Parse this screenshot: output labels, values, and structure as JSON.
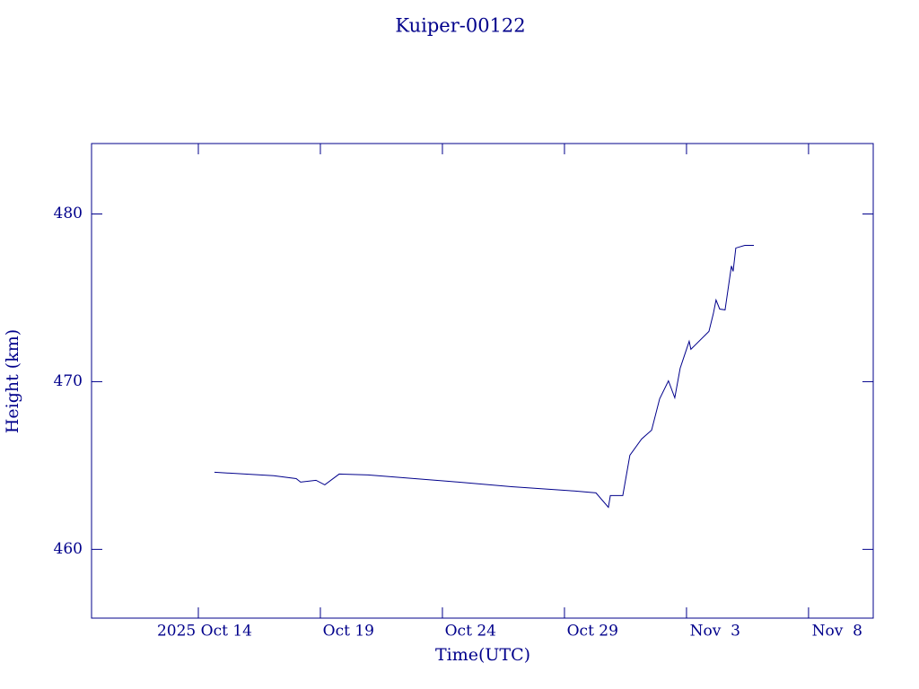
{
  "chart_data": {
    "type": "line",
    "title": "Kuiper-00122",
    "x_label": "Time(UTC)",
    "y_label": "Height (km)",
    "x": [
      287.66,
      290.09,
      291.01,
      291.19,
      291.82,
      292.18,
      292.77,
      293.95,
      297.26,
      299.83,
      302.4,
      303.29,
      303.8,
      303.88,
      304.39,
      304.68,
      305.16,
      305.57,
      305.9,
      306.26,
      306.52,
      306.74,
      307.11,
      307.18,
      307.92,
      308.1,
      308.21,
      308.36,
      308.58,
      308.84,
      308.91,
      309.02,
      309.39,
      309.76
    ],
    "series": [
      {
        "color": "#00008b",
        "values": [
          464.6,
          464.39,
          464.22,
          464.01,
          464.12,
          463.85,
          464.49,
          464.44,
          464.06,
          463.74,
          463.48,
          463.37,
          462.51,
          463.21,
          463.21,
          465.61,
          466.58,
          467.11,
          468.98,
          470.05,
          469.04,
          470.8,
          472.41,
          471.93,
          473.0,
          474.06,
          474.87,
          474.33,
          474.28,
          476.9,
          476.58,
          477.97,
          478.13,
          478.13
        ]
      }
    ],
    "xlim": [
      282.625,
      314.65
    ],
    "ylim": [
      455.9,
      484.2
    ],
    "xticks": [
      {
        "value": 287,
        "label": "2025 Oct 14"
      },
      {
        "value": 292,
        "label": "Oct 19"
      },
      {
        "value": 297,
        "label": "Oct 24"
      },
      {
        "value": 302,
        "label": "Oct 29"
      },
      {
        "value": 307,
        "label": "Nov  3"
      },
      {
        "value": 312,
        "label": "Nov  8"
      }
    ],
    "yticks": [
      460,
      470,
      480
    ]
  }
}
